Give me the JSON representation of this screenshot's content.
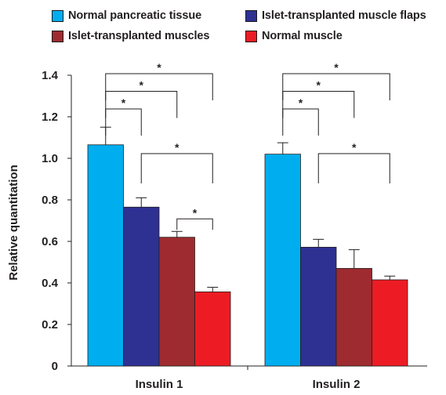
{
  "chart_data": {
    "type": "bar",
    "categories": [
      "Insulin 1",
      "Insulin 2"
    ],
    "xlabel": "",
    "ylabel": "Relative quantitation",
    "ylim": [
      0,
      1.4
    ],
    "yticks": [
      "0",
      "0.2",
      "0.4",
      "0.6",
      "0.8",
      "1.0",
      "1.2",
      "1.4"
    ],
    "legend_position": "top",
    "grid": false,
    "series": [
      {
        "name": "Normal pancreatic tissue",
        "color": "#00aeef",
        "values": [
          1.065,
          1.02
        ],
        "errors": [
          0.085,
          0.055
        ]
      },
      {
        "name": "Islet-transplanted muscle flaps",
        "color": "#2e3192",
        "values": [
          0.765,
          0.572
        ],
        "errors": [
          0.045,
          0.038
        ]
      },
      {
        "name": "Islet-transplanted muscles",
        "color": "#9e2b2f",
        "values": [
          0.62,
          0.47
        ],
        "errors": [
          0.028,
          0.09
        ]
      },
      {
        "name": "Normal muscle",
        "color": "#ed1c24",
        "values": [
          0.357,
          0.415
        ],
        "errors": [
          0.022,
          0.018
        ]
      }
    ],
    "significance": [
      {
        "group": 0,
        "from": 0,
        "to": 1,
        "label": "*"
      },
      {
        "group": 0,
        "from": 0,
        "to": 2,
        "label": "*"
      },
      {
        "group": 0,
        "from": 0,
        "to": 3,
        "label": "*"
      },
      {
        "group": 0,
        "from": 1,
        "to": 3,
        "label": "*"
      },
      {
        "group": 0,
        "from": 2,
        "to": 3,
        "label": "*"
      },
      {
        "group": 1,
        "from": 0,
        "to": 1,
        "label": "*"
      },
      {
        "group": 1,
        "from": 0,
        "to": 2,
        "label": "*"
      },
      {
        "group": 1,
        "from": 0,
        "to": 3,
        "label": "*"
      },
      {
        "group": 1,
        "from": 1,
        "to": 3,
        "label": "*"
      }
    ]
  }
}
